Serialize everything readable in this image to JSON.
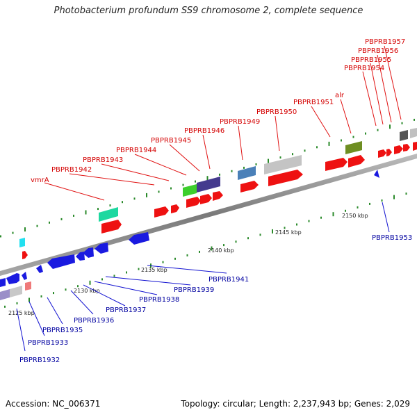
{
  "header": {
    "title": "Photobacterium profundum SS9 chromosome 2, complete sequence"
  },
  "footer": {
    "accession": "Accession: NC_006371",
    "summary": "Topology: circular; Length: 2,237,943 bp; Genes: 2,029"
  },
  "scale": [
    "2125 kbp",
    "2130 kbp",
    "2135 kbp",
    "2140 kbp",
    "2145 kbp",
    "2150 kbp"
  ],
  "forward_labels": [
    "vmrA",
    "PBPRB1942",
    "PBPRB1943",
    "PBPRB1944",
    "PBPRB1945",
    "PBPRB1946",
    "PBPRB1949",
    "PBPRB1950",
    "PBPRB1951",
    "alr",
    "PBPRB1954",
    "PBPRB1955",
    "PBPRB1956",
    "PBPRB1957"
  ],
  "reverse_labels": [
    "PBPRB1932",
    "PBPRB1933",
    "PBPRB1935",
    "PBPRB1936",
    "PBPRB1937",
    "PBPRB1938",
    "PBPRB1939",
    "PBPRB1941",
    "PBPRB1953"
  ],
  "colors": {
    "forward": "#ee0000",
    "reverse": "#1a1ae0",
    "backbone": "#8a8a8a",
    "tick": "#2a8a2a",
    "fwd_label": "#d40000",
    "rev_label": "#0000a0"
  }
}
